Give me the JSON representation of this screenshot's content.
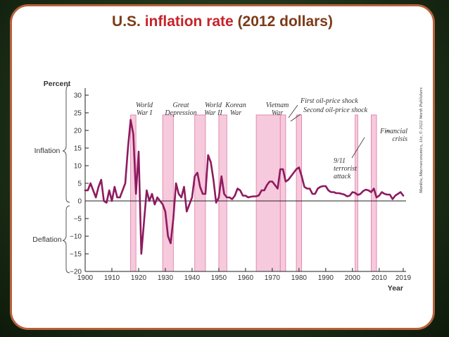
{
  "slide": {
    "title_part1": "U.S. ",
    "title_part2": "inflation rate",
    "title_part3": " (2012 dollars)"
  },
  "credit": "Mankiw, Macroeconomics, 11e, © 2022 Worth Publishers",
  "colors": {
    "line": "#8e1a5f",
    "band": "#f7c9dc",
    "band_edge": "#d97aa3",
    "border": "#b5623a"
  },
  "chart_data": {
    "type": "line",
    "ylabel": "Percent",
    "xlabel": "Year",
    "side_labels": {
      "top": "Inflation",
      "bottom": "Deflation"
    },
    "xlim": [
      1900,
      2019
    ],
    "ylim": [
      -20,
      30
    ],
    "xticks": [
      1900,
      1910,
      1920,
      1930,
      1940,
      1950,
      1960,
      1970,
      1980,
      1990,
      2000,
      2010,
      2019
    ],
    "yticks": [
      30,
      25,
      20,
      15,
      10,
      5,
      0,
      -5,
      -10,
      -15,
      -20
    ],
    "bands": [
      {
        "start": 1917,
        "end": 1919
      },
      {
        "start": 1929,
        "end": 1933
      },
      {
        "start": 1941,
        "end": 1945
      },
      {
        "start": 1950,
        "end": 1953
      },
      {
        "start": 1964,
        "end": 1973
      },
      {
        "start": 1973,
        "end": 1975
      },
      {
        "start": 1979,
        "end": 1981
      },
      {
        "start": 2001,
        "end": 2002
      },
      {
        "start": 2007,
        "end": 2009
      }
    ],
    "annotations": [
      {
        "text": "World War I",
        "lines": [
          "World",
          "War I"
        ]
      },
      {
        "text": "Great Depression",
        "lines": [
          "Great",
          "Depression"
        ]
      },
      {
        "text": "World War II",
        "lines": [
          "World",
          "War II"
        ]
      },
      {
        "text": "Korean War",
        "lines": [
          "Korean",
          "War"
        ]
      },
      {
        "text": "Vietnam War",
        "lines": [
          "Vietnam",
          "War"
        ]
      },
      {
        "text": "First oil-price shock",
        "lines": [
          "First oil-price shock"
        ]
      },
      {
        "text": "Second oil-price shock",
        "lines": [
          "Second oil-price shock"
        ]
      },
      {
        "text": "9/11 terrorist attack",
        "lines": [
          "9/11",
          "terrorist",
          "attack"
        ]
      },
      {
        "text": "Financial crisis",
        "lines": [
          "Financial",
          "crisis"
        ]
      }
    ],
    "series": [
      {
        "x": [
          1900,
          1901,
          1902,
          1903,
          1904,
          1905,
          1906,
          1907,
          1908,
          1909,
          1910,
          1911,
          1912,
          1913,
          1914,
          1915,
          1916,
          1917,
          1918,
          1919,
          1920,
          1921,
          1922,
          1923,
          1924,
          1925,
          1926,
          1927,
          1928,
          1929,
          1930,
          1931,
          1932,
          1933,
          1934,
          1935,
          1936,
          1937,
          1938,
          1939,
          1940,
          1941,
          1942,
          1943,
          1944,
          1945,
          1946,
          1947,
          1948,
          1949,
          1950,
          1951,
          1952,
          1953,
          1954,
          1955,
          1956,
          1957,
          1958,
          1959,
          1960,
          1961,
          1962,
          1963,
          1964,
          1965,
          1966,
          1967,
          1968,
          1969,
          1970,
          1971,
          1972,
          1973,
          1974,
          1975,
          1976,
          1977,
          1978,
          1979,
          1980,
          1981,
          1982,
          1983,
          1984,
          1985,
          1986,
          1987,
          1988,
          1989,
          1990,
          1991,
          1992,
          1993,
          1994,
          1995,
          1996,
          1997,
          1998,
          1999,
          2000,
          2001,
          2002,
          2003,
          2004,
          2005,
          2006,
          2007,
          2008,
          2009,
          2010,
          2011,
          2012,
          2013,
          2014,
          2015,
          2016,
          2017,
          2018,
          2019
        ],
        "values": [
          3.0,
          3.0,
          5.0,
          3.0,
          1.0,
          4.0,
          6.0,
          0.0,
          -0.5,
          3.0,
          0.0,
          4.0,
          1.0,
          1.0,
          3.0,
          5.0,
          15.0,
          23.0,
          19.0,
          2.0,
          14.0,
          -15.0,
          -6.0,
          3.0,
          0.0,
          2.0,
          -1.0,
          1.0,
          0.0,
          -1.0,
          -3.0,
          -10.0,
          -12.0,
          -5.0,
          5.0,
          2.0,
          1.0,
          4.0,
          -3.0,
          -1.0,
          1.0,
          7.0,
          8.0,
          4.0,
          2.0,
          2.0,
          13.0,
          11.0,
          6.0,
          -0.5,
          1.0,
          7.0,
          2.0,
          1.0,
          1.0,
          0.5,
          1.5,
          3.5,
          3.0,
          1.5,
          1.5,
          1.0,
          1.2,
          1.3,
          1.3,
          1.6,
          3.0,
          3.0,
          4.5,
          5.5,
          5.5,
          4.5,
          3.5,
          9.0,
          9.0,
          5.5,
          6.0,
          7.0,
          8.0,
          9.0,
          9.5,
          7.0,
          4.0,
          3.5,
          3.5,
          2.0,
          2.0,
          3.5,
          4.0,
          4.2,
          4.2,
          3.0,
          2.5,
          2.5,
          2.2,
          2.2,
          2.0,
          1.8,
          1.3,
          1.5,
          2.5,
          2.3,
          1.7,
          2.0,
          2.8,
          3.2,
          3.0,
          2.5,
          3.5,
          1.0,
          1.5,
          2.5,
          2.0,
          1.8,
          1.8,
          0.5,
          1.5,
          2.0,
          2.5,
          1.5
        ]
      }
    ]
  }
}
